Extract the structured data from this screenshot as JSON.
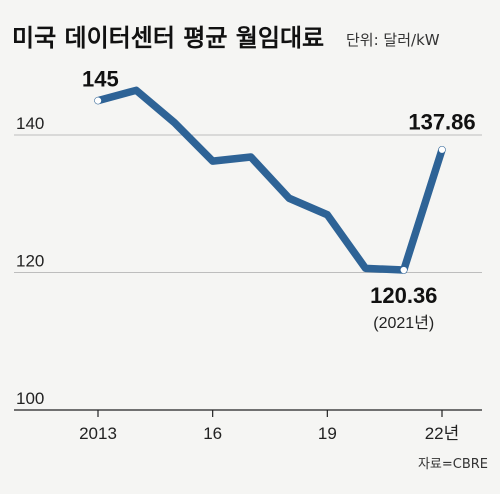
{
  "header": {
    "title": "미국 데이터센터 평균 월임대료",
    "unit": "단위: 달러/kW"
  },
  "source": "자료=CBRE",
  "colors": {
    "line": "#2e6396",
    "grid": "#bdbdbd",
    "background": "#f5f5f3"
  },
  "chart_data": {
    "type": "line",
    "x": [
      2013,
      2014,
      2015,
      2016,
      2017,
      2018,
      2019,
      2020,
      2021,
      2022
    ],
    "y": [
      145,
      146.5,
      141.8,
      136.2,
      136.8,
      130.8,
      128.4,
      120.6,
      120.36,
      137.86
    ],
    "ylim": [
      100,
      150
    ],
    "yticks": [
      "100",
      "120",
      "140"
    ],
    "xtick_labels": [
      {
        "x": 2013,
        "label": "2013"
      },
      {
        "x": 2016,
        "label": "16"
      },
      {
        "x": 2019,
        "label": "19"
      },
      {
        "x": 2022,
        "label": "22년"
      }
    ],
    "grid": "horizontal",
    "annotations": [
      {
        "x": 2013,
        "value": "145"
      },
      {
        "x": 2021,
        "value": "120.36",
        "note": "(2021년)"
      },
      {
        "x": 2022,
        "value": "137.86"
      }
    ]
  }
}
